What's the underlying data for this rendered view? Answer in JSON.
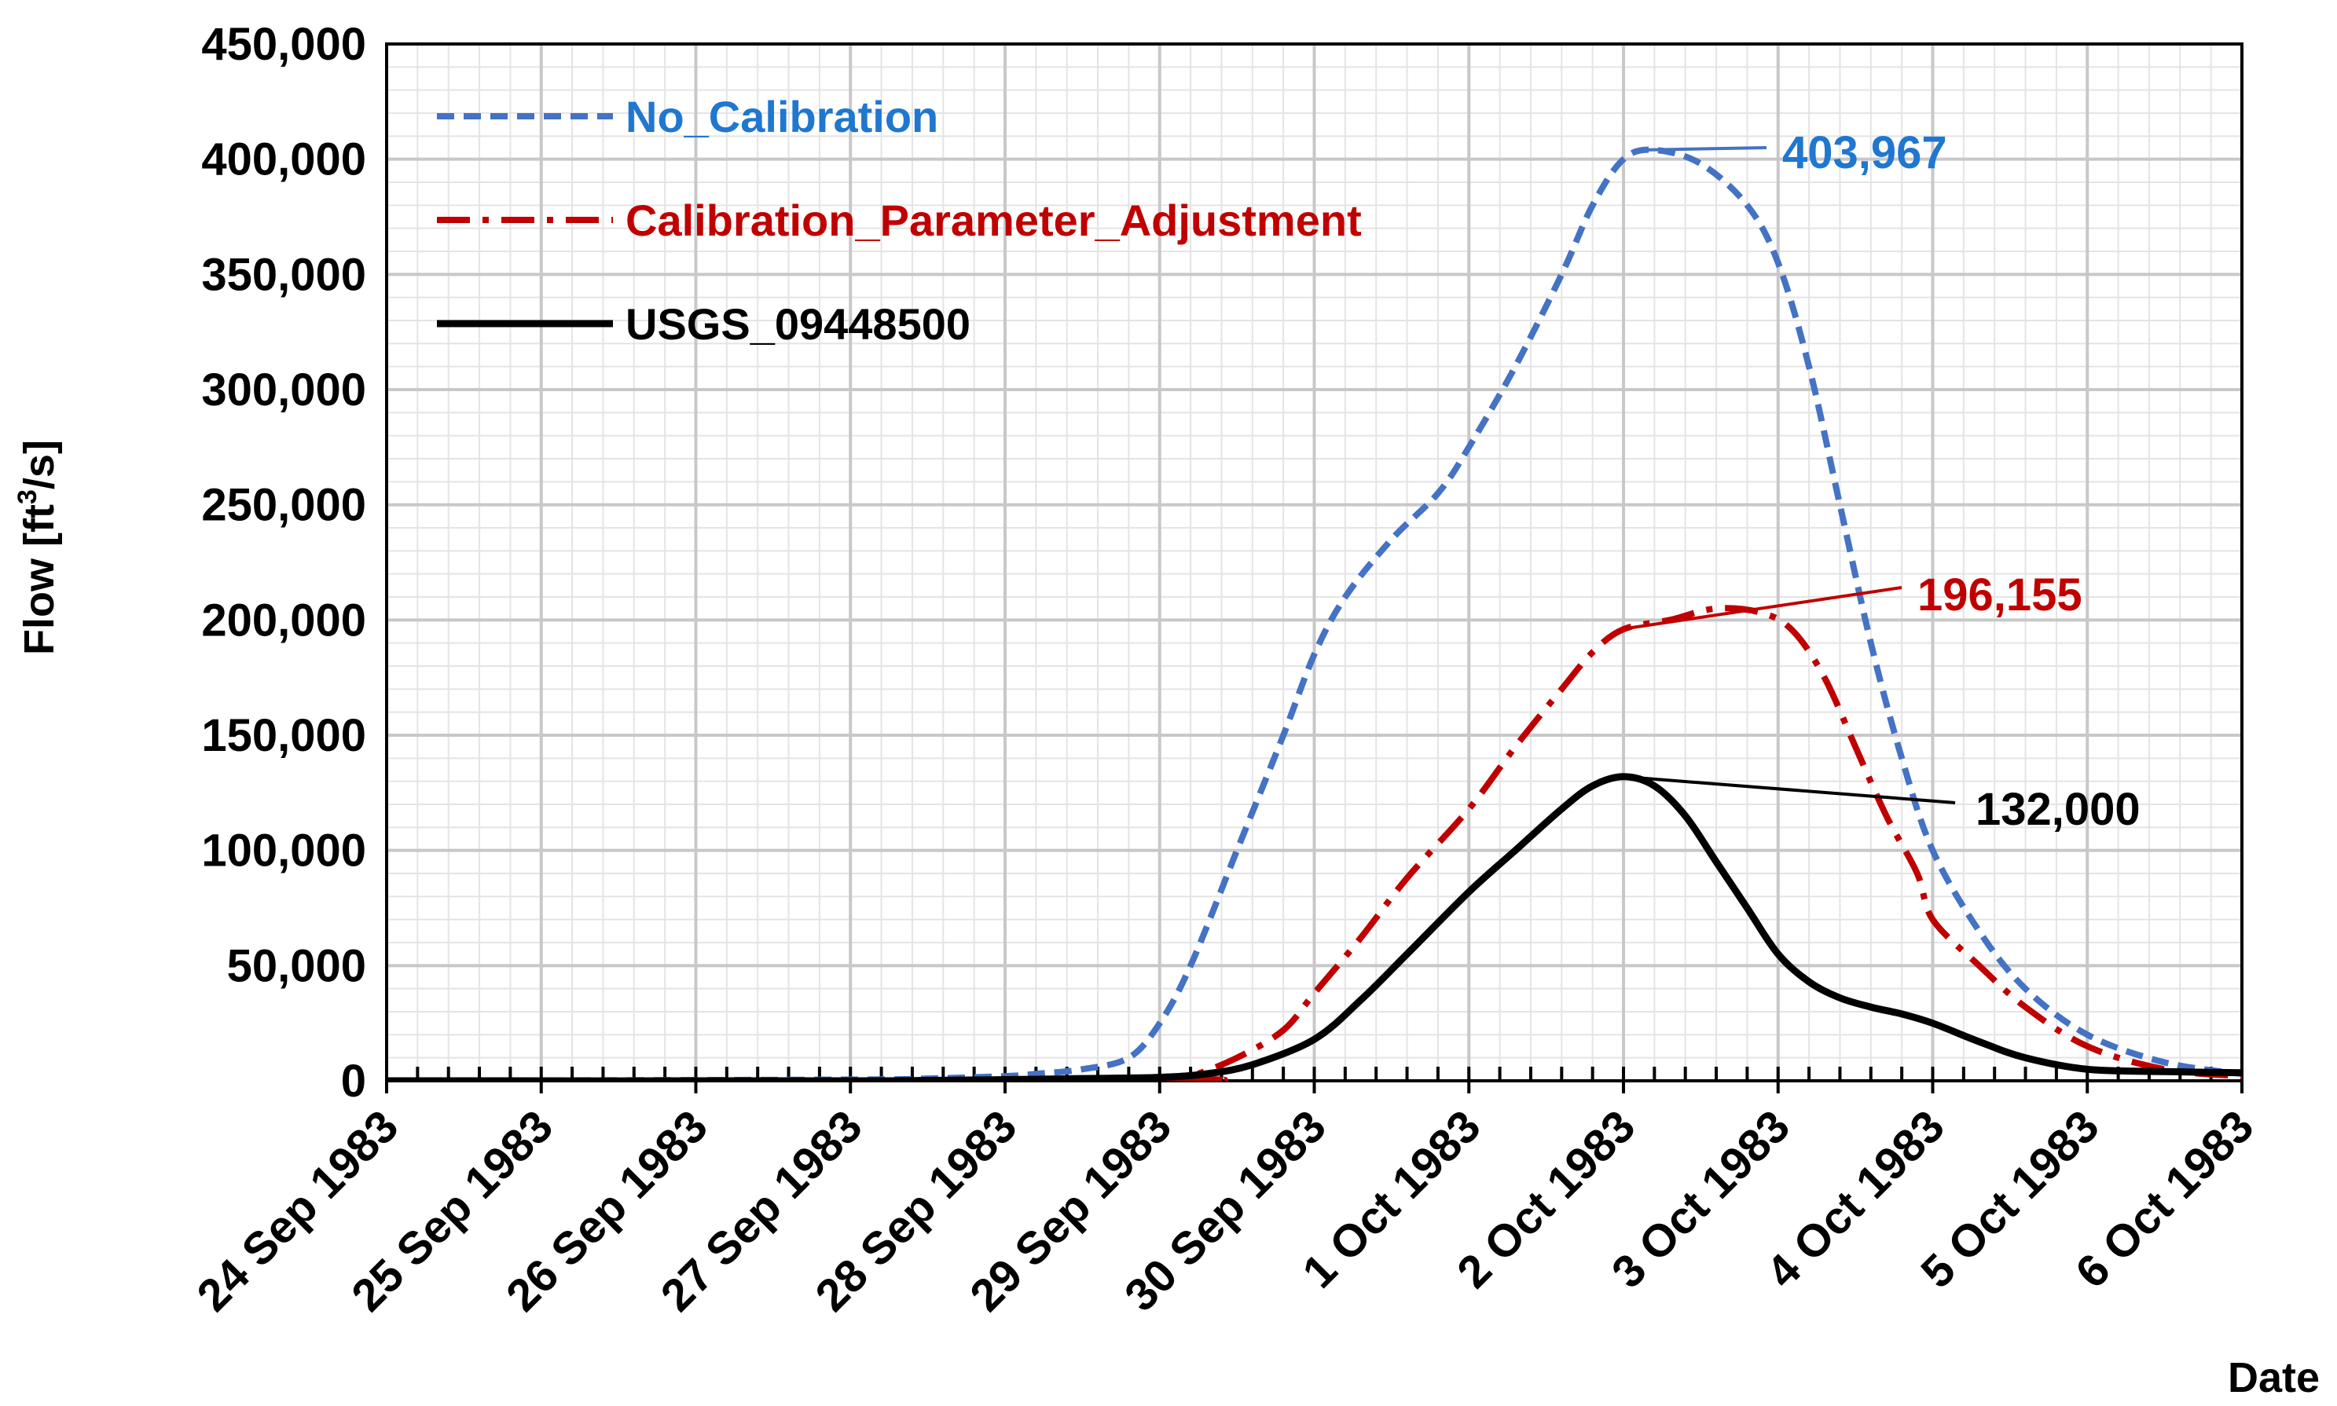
{
  "chart_data": {
    "type": "line",
    "title": "",
    "xlabel": "Date",
    "ylabel_main": "Flow [ft",
    "ylabel_sup": "3",
    "ylabel_end": "/s]",
    "ylim": [
      0,
      450000
    ],
    "yticks": [
      0,
      50000,
      100000,
      150000,
      200000,
      250000,
      300000,
      350000,
      400000,
      450000
    ],
    "ytick_labels": [
      "0",
      "50,000",
      "100,000",
      "150,000",
      "200,000",
      "250,000",
      "300,000",
      "350,000",
      "400,000",
      "450,000"
    ],
    "xlim": [
      0,
      12
    ],
    "xticks": [
      0,
      1,
      2,
      3,
      4,
      5,
      6,
      7,
      8,
      9,
      10,
      11,
      12
    ],
    "xtick_labels": [
      "24 Sep 1983",
      "25 Sep 1983",
      "26 Sep 1983",
      "27 Sep 1983",
      "28 Sep 1983",
      "29 Sep 1983",
      "30 Sep 1983",
      "1 Oct 1983",
      "2 Oct 1983",
      "3 Oct 1983",
      "4 Oct 1983",
      "5 Oct 1983",
      "6 Oct 1983"
    ],
    "grid": true,
    "legend_position": "top-left",
    "series": [
      {
        "name": "No_Calibration",
        "color": "#4472C4",
        "dash": "dashed",
        "x": [
          0,
          3,
          3.5,
          4,
          4.2,
          4.5,
          4.8,
          5.0,
          5.2,
          5.5,
          5.8,
          6.0,
          6.2,
          6.5,
          6.8,
          7.0,
          7.3,
          7.6,
          7.8,
          8.0,
          8.2,
          8.5,
          8.8,
          9.0,
          9.2,
          9.4,
          9.6,
          9.8,
          10.0,
          10.3,
          10.6,
          11.0,
          11.5,
          12.0
        ],
        "y": [
          0,
          500,
          1000,
          2000,
          3000,
          5000,
          10000,
          25000,
          50000,
          100000,
          150000,
          185000,
          210000,
          235000,
          255000,
          275000,
          310000,
          350000,
          380000,
          400000,
          404000,
          398000,
          380000,
          355000,
          310000,
          250000,
          190000,
          140000,
          100000,
          65000,
          40000,
          20000,
          8000,
          3000
        ]
      },
      {
        "name": "Calibration_Parameter_Adjustment",
        "color": "#C00000",
        "dash": "dashdot",
        "x": [
          0,
          5.0,
          5.2,
          5.5,
          5.8,
          6.0,
          6.3,
          6.6,
          7.0,
          7.3,
          7.6,
          7.8,
          8.0,
          8.3,
          8.6,
          8.9,
          9.1,
          9.3,
          9.5,
          9.7,
          9.9,
          10.0,
          10.3,
          10.6,
          11.0,
          11.5,
          12.0
        ],
        "y": [
          0,
          0,
          2000,
          10000,
          22000,
          38000,
          62000,
          88000,
          118000,
          145000,
          170000,
          186000,
          196000,
          200000,
          205000,
          203000,
          195000,
          175000,
          145000,
          115000,
          90000,
          70000,
          50000,
          32000,
          15000,
          5000,
          2000
        ]
      },
      {
        "name": "USGS_09448500",
        "color": "#000000",
        "dash": "solid",
        "x": [
          0,
          3,
          4,
          4.5,
          5.0,
          5.3,
          5.6,
          6.0,
          6.3,
          6.6,
          7.0,
          7.3,
          7.6,
          7.8,
          8.0,
          8.2,
          8.4,
          8.6,
          8.8,
          9.0,
          9.2,
          9.4,
          9.6,
          9.8,
          10.0,
          10.3,
          10.6,
          11.0,
          11.5,
          12.0
        ],
        "y": [
          0,
          0,
          500,
          1000,
          1500,
          3000,
          7000,
          18000,
          35000,
          55000,
          82000,
          100000,
          118000,
          128000,
          132000,
          128000,
          115000,
          95000,
          75000,
          55000,
          43000,
          36000,
          32000,
          29000,
          25000,
          17000,
          10000,
          5000,
          4000,
          3500
        ]
      }
    ],
    "annotations": [
      {
        "text": "403,967",
        "series": "No_Calibration",
        "x": 8.1,
        "y": 403967,
        "color": "#1F77D0"
      },
      {
        "text": "196,155",
        "series": "Calibration_Parameter_Adjustment",
        "x": 8.0,
        "y": 196155,
        "color": "#C00000"
      },
      {
        "text": "132,000",
        "series": "USGS_09448500",
        "x": 8.0,
        "y": 132000,
        "color": "#000000"
      }
    ]
  }
}
